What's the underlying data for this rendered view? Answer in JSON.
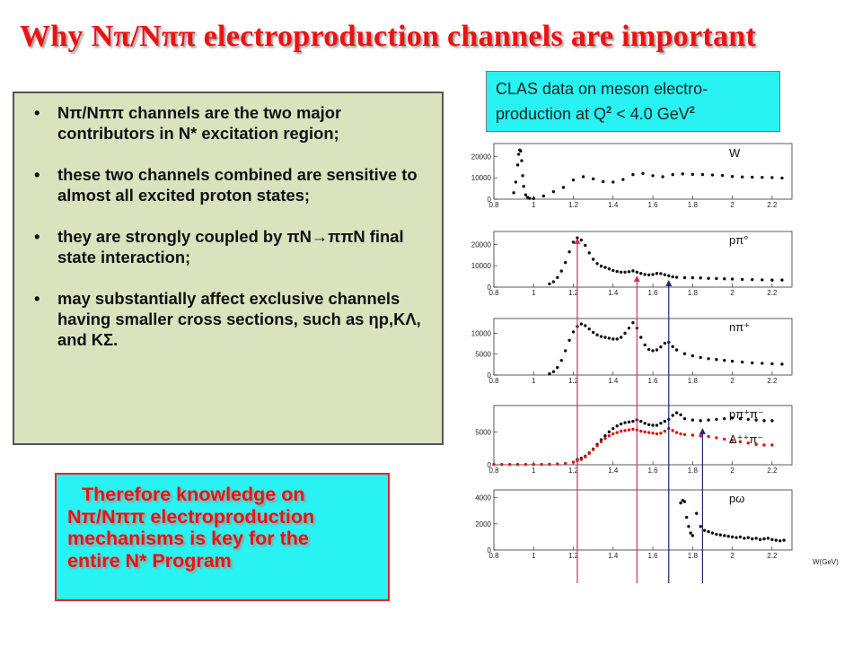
{
  "title": "Why  Nπ/Nππ  electroproduction  channels are important",
  "bullets": [
    "Nπ/Nππ channels are the two major contributors in N* excitation region;",
    "these two channels combined are sensitive to almost all excited proton states;",
    "they are strongly coupled by πN→ππN final state interaction;",
    "may substantially affect exclusive channels having smaller cross sections, such as ηp,KΛ, and KΣ."
  ],
  "clas_box": {
    "line1": "CLAS data on meson electro-",
    "line2_prefix": "production at Q",
    "q_sup": "2",
    "line2_mid": " < 4.0 GeV",
    "gev_sup": "2"
  },
  "therefore_box": [
    "Therefore knowledge on",
    "Nπ/Nππ electroproduction",
    "mechanisms  is key for the",
    "entire N* Program"
  ],
  "chart_data": {
    "type": "scatter",
    "xlabel": "W(GeV)",
    "x_ticks": [
      "0.8",
      "1",
      "1.2",
      "1.4",
      "1.6",
      "1.8",
      "2",
      "2.2"
    ],
    "xlim": [
      0.8,
      2.3
    ],
    "colors": {
      "black": "#111111",
      "red": "#dd1111",
      "pink_arrow": "#d0306a",
      "navy_arrow": "#1a2a6e"
    },
    "arrows_x": [
      1.22,
      1.52,
      1.68,
      1.85
    ],
    "panels": [
      {
        "label": "W",
        "ylim": [
          0,
          26000
        ],
        "y_ticks": [
          0,
          10000,
          20000
        ],
        "series": [
          {
            "color": "black",
            "x": [
              0.9,
              0.91,
              0.92,
              0.925,
              0.93,
              0.935,
              0.94,
              0.945,
              0.95,
              0.96,
              0.97,
              0.98,
              1.0,
              1.05,
              1.1,
              1.15,
              1.2,
              1.25,
              1.3,
              1.35,
              1.4,
              1.45,
              1.5,
              1.55,
              1.6,
              1.65,
              1.7,
              1.75,
              1.8,
              1.85,
              1.9,
              1.95,
              2.0,
              2.05,
              2.1,
              2.15,
              2.2,
              2.25
            ],
            "y": [
              3000,
              8000,
              16000,
              21000,
              23000,
              22500,
              18000,
              11000,
              6000,
              2000,
              800,
              400,
              300,
              1500,
              3500,
              5500,
              9000,
              10500,
              9500,
              8200,
              8000,
              9200,
              11500,
              12000,
              11000,
              10500,
              11500,
              11800,
              11600,
              11500,
              11300,
              11100,
              10600,
              10400,
              10300,
              10200,
              10100,
              9900
            ]
          }
        ]
      },
      {
        "label": "pπ°",
        "ylim": [
          0,
          26000
        ],
        "y_ticks": [
          0,
          10000,
          20000
        ],
        "series": [
          {
            "color": "black",
            "x": [
              1.08,
              1.1,
              1.12,
              1.14,
              1.16,
              1.18,
              1.2,
              1.22,
              1.24,
              1.26,
              1.28,
              1.3,
              1.32,
              1.34,
              1.36,
              1.38,
              1.4,
              1.42,
              1.44,
              1.46,
              1.48,
              1.5,
              1.52,
              1.54,
              1.56,
              1.58,
              1.6,
              1.62,
              1.64,
              1.66,
              1.68,
              1.7,
              1.72,
              1.76,
              1.8,
              1.84,
              1.88,
              1.92,
              1.96,
              2.0,
              2.05,
              2.1,
              2.15,
              2.2,
              2.25
            ],
            "y": [
              1500,
              2500,
              4500,
              7500,
              11500,
              16500,
              21000,
              23000,
              22000,
              19500,
              16000,
              13000,
              11000,
              9800,
              9200,
              8500,
              7800,
              7300,
              7000,
              7000,
              7200,
              7600,
              7000,
              6400,
              5900,
              5700,
              5900,
              6400,
              6300,
              5800,
              5300,
              4800,
              4600,
              4400,
              4400,
              4300,
              4100,
              4000,
              3900,
              3800,
              3600,
              3500,
              3400,
              3300,
              3300
            ]
          }
        ]
      },
      {
        "label": "nπ⁺",
        "ylim": [
          0,
          13500
        ],
        "y_ticks": [
          0,
          5000,
          10000
        ],
        "series": [
          {
            "color": "black",
            "x": [
              1.08,
              1.1,
              1.12,
              1.14,
              1.16,
              1.18,
              1.2,
              1.22,
              1.24,
              1.26,
              1.28,
              1.3,
              1.32,
              1.34,
              1.36,
              1.38,
              1.4,
              1.42,
              1.44,
              1.46,
              1.48,
              1.5,
              1.52,
              1.54,
              1.56,
              1.58,
              1.6,
              1.62,
              1.64,
              1.66,
              1.68,
              1.7,
              1.72,
              1.76,
              1.8,
              1.84,
              1.88,
              1.92,
              1.96,
              2.0,
              2.05,
              2.1,
              2.15,
              2.2,
              2.25
            ],
            "y": [
              300,
              800,
              1800,
              3500,
              5800,
              8300,
              10300,
              11600,
              12200,
              11800,
              11000,
              10200,
              9600,
              9200,
              9000,
              8800,
              8600,
              8600,
              9000,
              10000,
              11200,
              12500,
              11200,
              9000,
              7200,
              6100,
              5800,
              6000,
              6700,
              7600,
              7800,
              6800,
              6000,
              5100,
              4600,
              4200,
              3900,
              3700,
              3500,
              3300,
              3100,
              2900,
              2800,
              2700,
              2600
            ]
          }
        ]
      },
      {
        "label": "pπ⁺π⁻",
        "label2": "Δ⁺⁺π⁻",
        "ylim": [
          0,
          9000
        ],
        "y_ticks": [
          0,
          5000
        ],
        "series": [
          {
            "color": "black",
            "x": [
              1.22,
              1.24,
              1.26,
              1.28,
              1.3,
              1.32,
              1.34,
              1.36,
              1.38,
              1.4,
              1.42,
              1.44,
              1.46,
              1.48,
              1.5,
              1.52,
              1.54,
              1.56,
              1.58,
              1.6,
              1.62,
              1.64,
              1.66,
              1.68,
              1.7,
              1.72,
              1.74,
              1.76,
              1.8,
              1.84,
              1.88,
              1.92,
              1.96,
              2.0,
              2.04,
              2.08,
              2.12,
              2.16,
              2.2
            ],
            "y": [
              800,
              1000,
              1300,
              1800,
              2400,
              3100,
              3800,
              4400,
              5000,
              5500,
              5900,
              6200,
              6400,
              6500,
              6600,
              6800,
              6600,
              6300,
              6100,
              6000,
              6000,
              6300,
              6600,
              6900,
              7500,
              7900,
              7600,
              7000,
              6800,
              6700,
              6800,
              6900,
              7000,
              7100,
              7000,
              6900,
              6800,
              6700,
              6700
            ]
          },
          {
            "color": "red",
            "x": [
              0.8,
              0.84,
              0.88,
              0.92,
              0.96,
              1.0,
              1.04,
              1.08,
              1.12,
              1.16,
              1.2,
              1.22,
              1.24,
              1.26,
              1.28,
              1.3,
              1.32,
              1.34,
              1.36,
              1.38,
              1.4,
              1.42,
              1.44,
              1.46,
              1.48,
              1.5,
              1.52,
              1.54,
              1.56,
              1.58,
              1.6,
              1.62,
              1.64,
              1.66,
              1.68,
              1.7,
              1.72,
              1.74,
              1.76,
              1.8,
              1.84,
              1.88,
              1.92,
              1.96,
              2.0,
              2.04,
              2.08,
              2.12,
              2.16,
              2.2
            ],
            "y": [
              50,
              50,
              50,
              50,
              50,
              50,
              60,
              80,
              120,
              200,
              400,
              600,
              800,
              1200,
              1700,
              2300,
              2900,
              3500,
              4000,
              4400,
              4700,
              4900,
              5100,
              5200,
              5300,
              5400,
              5300,
              5100,
              5000,
              4900,
              4800,
              4700,
              4800,
              5100,
              5500,
              5200,
              4900,
              4700,
              4600,
              4500,
              4400,
              4300,
              4100,
              3900,
              3700,
              3500,
              3300,
              3100,
              3000,
              3000
            ]
          }
        ]
      },
      {
        "label": "pω",
        "ylim": [
          0,
          4600
        ],
        "y_ticks": [
          0,
          2000,
          4000
        ],
        "series": [
          {
            "color": "black",
            "x": [
              1.74,
              1.75,
              1.76,
              1.77,
              1.78,
              1.79,
              1.8,
              1.82,
              1.84,
              1.86,
              1.88,
              1.9,
              1.92,
              1.94,
              1.96,
              1.98,
              2.0,
              2.02,
              2.04,
              2.06,
              2.08,
              2.1,
              2.12,
              2.14,
              2.16,
              2.18,
              2.2,
              2.22,
              2.24,
              2.26
            ],
            "y": [
              3600,
              3800,
              3700,
              2500,
              1800,
              1300,
              1100,
              2800,
              1800,
              1500,
              1400,
              1300,
              1200,
              1150,
              1100,
              1050,
              1000,
              950,
              1000,
              900,
              950,
              850,
              900,
              800,
              850,
              900,
              800,
              750,
              700,
              750
            ]
          }
        ]
      }
    ]
  }
}
